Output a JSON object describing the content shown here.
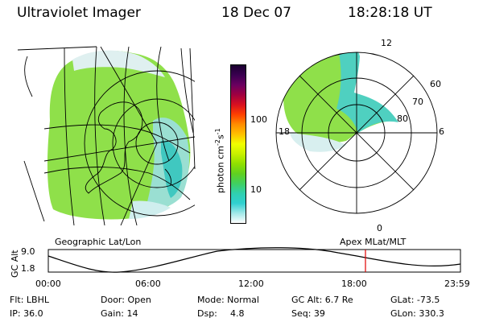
{
  "header": {
    "title": "Ultraviolet Imager",
    "date": "18 Dec 07",
    "time": "18:28:18 UT"
  },
  "left_panel": {
    "caption": "Geographic Lat/Lon"
  },
  "right_panel": {
    "caption": "Apex  MLat/MLT",
    "mlt_labels": {
      "top": "12",
      "left": "18",
      "right": "6",
      "bottom": "0"
    },
    "lat_labels": [
      "60",
      "70",
      "80"
    ]
  },
  "colorbar": {
    "label": "photon cm",
    "label_sup1": "-2",
    "label_s": "s",
    "label_sup2": "-1",
    "ticks": [
      "100",
      "10"
    ],
    "colors": [
      "#1a0030",
      "#3a0050",
      "#6a0060",
      "#a00040",
      "#d81020",
      "#ff4000",
      "#ff8c00",
      "#ffc000",
      "#f0ff00",
      "#c8f000",
      "#90e000",
      "#60d020",
      "#40d060",
      "#30d0b0",
      "#30d0d0",
      "#a0e8e8",
      "#ffffff"
    ]
  },
  "timeline": {
    "ylabel": "GC Alt",
    "ticks_y": [
      "9.0",
      "1.8"
    ],
    "ticks_x": [
      "00:00",
      "06:00",
      "12:00",
      "18:00",
      "23:59"
    ],
    "marker_fraction": 0.7695,
    "marker_color": "#e00000"
  },
  "info": {
    "flt": "Flt: LBHL",
    "ip": "IP: 36.0",
    "door": "Door: Open",
    "gain": "Gain: 14",
    "mode": "Mode: Normal",
    "dsp_label": "Dsp:",
    "dsp_value": "4.8",
    "gcalt": "GC Alt: 6.7 Re",
    "seq": "Seq: 39",
    "glat": "GLat: -73.5",
    "glon": "GLon: 330.3"
  }
}
